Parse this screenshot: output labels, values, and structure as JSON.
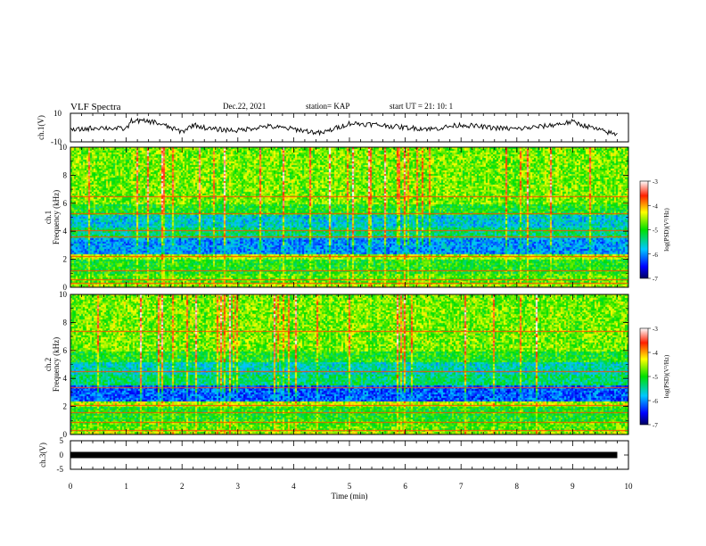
{
  "header": {
    "title": "VLF Spectra",
    "date": "Dec.22, 2021",
    "station": "station= KAP",
    "start": "start  UT =   21: 10: 1"
  },
  "chart_data": [
    {
      "type": "line",
      "id": "ch1-waveform",
      "ylabel": "ch.1(V)",
      "xlim": [
        0,
        10
      ],
      "ylim": [
        -10,
        10
      ],
      "yticks": [
        "10",
        "-10"
      ],
      "x": [
        0,
        0.5,
        1.0,
        1.1,
        1.5,
        2.0,
        2.2,
        2.5,
        3.0,
        3.5,
        4.0,
        4.5,
        5.0,
        5.5,
        6.0,
        6.5,
        7.0,
        7.5,
        8.0,
        8.5,
        9.0,
        9.5,
        9.8
      ],
      "values": [
        -2,
        0,
        -1,
        5,
        4,
        -3,
        2,
        -1,
        -2,
        1,
        -1,
        -4,
        3,
        2,
        0,
        -1,
        2,
        0,
        -1,
        1,
        4,
        -2,
        -5
      ]
    },
    {
      "type": "heatmap",
      "id": "ch1-spectrogram",
      "ylabel": "ch.1 Frequency (kHz)",
      "xlim": [
        0,
        10
      ],
      "ylim": [
        0,
        10
      ],
      "yticks": [
        "0",
        "2",
        "4",
        "6",
        "8",
        "10"
      ],
      "colorbar": {
        "label": "log(PSD)(V²/Hz)",
        "range": [
          -7,
          -3
        ],
        "ticks": [
          "-3",
          "-4",
          "-5",
          "-6",
          "-7"
        ]
      }
    },
    {
      "type": "heatmap",
      "id": "ch2-spectrogram",
      "ylabel": "ch.2 Frequency (kHz)",
      "xlim": [
        0,
        10
      ],
      "ylim": [
        0,
        10
      ],
      "yticks": [
        "0",
        "2",
        "4",
        "6",
        "8",
        "10"
      ],
      "colorbar": {
        "label": "log(PSD)(V²/Hz)",
        "range": [
          -7,
          -3
        ],
        "ticks": [
          "-3",
          "-4",
          "-5",
          "-6",
          "-7"
        ]
      }
    },
    {
      "type": "line",
      "id": "ch3-signal",
      "ylabel": "ch.3(V)",
      "xlim": [
        0,
        10
      ],
      "ylim": [
        -5,
        5
      ],
      "yticks": [
        "5",
        "0",
        "-5"
      ],
      "x": [
        0,
        9.8
      ],
      "values": [
        0,
        0
      ]
    }
  ],
  "xaxis": {
    "label": "Time  (min)",
    "ticks": [
      "0",
      "1",
      "2",
      "3",
      "4",
      "5",
      "6",
      "7",
      "8",
      "9",
      "10"
    ]
  }
}
